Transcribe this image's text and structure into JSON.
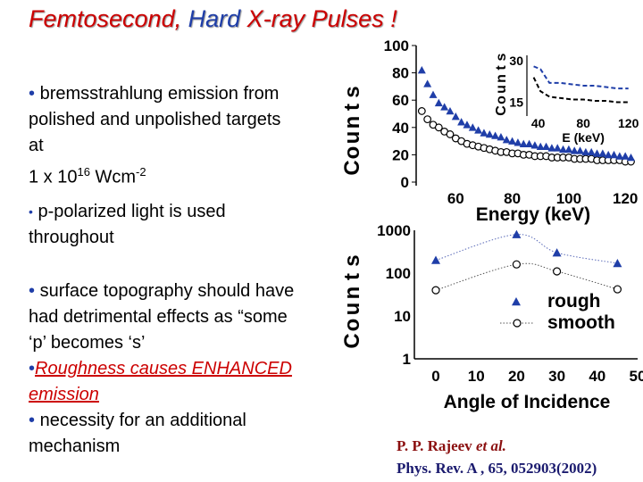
{
  "title": {
    "part1": "Femtosecond",
    "sep": ", ",
    "part2": "Hard",
    "part3": " X-ray Pulses !"
  },
  "bullets": {
    "b1_line1": "bremsstrahlung emission from",
    "b1_line2": "polished and unpolished targets",
    "b1_line3": "at",
    "b1_base": "1 x 10",
    "b1_exp": "16",
    "b1_unit": " Wcm",
    "b1_unit_exp": "-2",
    "b2_line1": "p-polarized light is used",
    "b2_line2": "throughout",
    "b3_line1": "surface topography should have",
    "b3_line2": "had detrimental effects as “some",
    "b3_line3": "‘p’ becomes ‘s’",
    "b4_line1": "Roughness causes ENHANCED",
    "b4_line2": "emission",
    "b5_line1": "necessity for an additional",
    "b5_line2": "mechanism",
    "bullet_symbol": "•"
  },
  "reference": {
    "authors": "P. P. Rajeev ",
    "etal": "et al.",
    "journal": "Phys. Rev. A , 65, 052903(2002)"
  },
  "chart_data": [
    {
      "type": "scatter",
      "title": "",
      "xlabel": "Energy (keV)",
      "ylabel": "Counts",
      "xlim": [
        46,
        125
      ],
      "ylim": [
        0,
        100
      ],
      "xticks": [
        60,
        80,
        100,
        120
      ],
      "yticks": [
        0,
        20,
        40,
        60,
        80,
        100
      ],
      "legend": "none",
      "series": [
        {
          "marker": "triangle-filled",
          "color": "#1f3ea8",
          "x": [
            48,
            50,
            52,
            54,
            56,
            58,
            60,
            62,
            64,
            66,
            68,
            70,
            72,
            74,
            76,
            78,
            80,
            82,
            84,
            86,
            88,
            90,
            92,
            94,
            96,
            98,
            100,
            102,
            104,
            106,
            108,
            110,
            112,
            114,
            116,
            118,
            120,
            122
          ],
          "y": [
            82,
            72,
            64,
            58,
            55,
            52,
            48,
            44,
            42,
            40,
            38,
            36,
            35,
            34,
            33,
            31,
            30,
            29,
            28,
            28,
            27,
            26,
            26,
            25,
            25,
            24,
            24,
            23,
            23,
            22,
            22,
            21,
            21,
            20,
            20,
            19,
            19,
            18
          ]
        },
        {
          "marker": "circle-open",
          "color": "#000000",
          "x": [
            48,
            50,
            52,
            54,
            56,
            58,
            60,
            62,
            64,
            66,
            68,
            70,
            72,
            74,
            76,
            78,
            80,
            82,
            84,
            86,
            88,
            90,
            92,
            94,
            96,
            98,
            100,
            102,
            104,
            106,
            108,
            110,
            112,
            114,
            116,
            118,
            120,
            122
          ],
          "y": [
            52,
            46,
            42,
            40,
            37,
            35,
            32,
            30,
            28,
            27,
            26,
            25,
            24,
            23,
            22,
            22,
            21,
            21,
            20,
            20,
            19,
            19,
            19,
            18,
            18,
            18,
            18,
            17,
            17,
            17,
            17,
            16,
            16,
            16,
            16,
            16,
            15,
            15
          ]
        }
      ]
    },
    {
      "type": "line",
      "title": "",
      "xlabel": "E (keV)",
      "ylabel": "Counts",
      "xlim": [
        30,
        125
      ],
      "ylim": [
        10,
        32
      ],
      "xticks": [
        40,
        80,
        120
      ],
      "yticks": [
        15,
        30
      ],
      "legend": "none",
      "series": [
        {
          "style": "dashed",
          "color": "#1f3ea8",
          "x": [
            36,
            42,
            50,
            60,
            70,
            80,
            90,
            100,
            110,
            120
          ],
          "y": [
            28,
            27,
            22,
            22,
            21.5,
            21,
            21,
            20.5,
            20,
            20
          ]
        },
        {
          "style": "dashed",
          "color": "#000000",
          "x": [
            36,
            42,
            50,
            60,
            70,
            80,
            90,
            100,
            110,
            120
          ],
          "y": [
            24,
            19,
            17,
            16.5,
            16,
            16,
            15.5,
            15.5,
            15,
            15
          ]
        }
      ]
    },
    {
      "type": "line",
      "title": "",
      "xlabel": "Angle of Incidence",
      "ylabel": "Counts",
      "xlim": [
        0,
        50
      ],
      "ylim": [
        1,
        1000
      ],
      "scale_y": "log",
      "xticks": [
        0,
        10,
        20,
        30,
        40,
        50
      ],
      "yticks": [
        1,
        10,
        100,
        1000
      ],
      "legend": "right",
      "series": [
        {
          "name": "rough",
          "marker": "triangle-filled",
          "color": "#1f3ea8",
          "x": [
            0,
            20,
            30,
            45
          ],
          "y": [
            200,
            800,
            300,
            170
          ]
        },
        {
          "name": "smooth",
          "marker": "circle-open",
          "color": "#000000",
          "x": [
            0,
            20,
            30,
            45
          ],
          "y": [
            40,
            160,
            110,
            42
          ]
        }
      ]
    }
  ]
}
